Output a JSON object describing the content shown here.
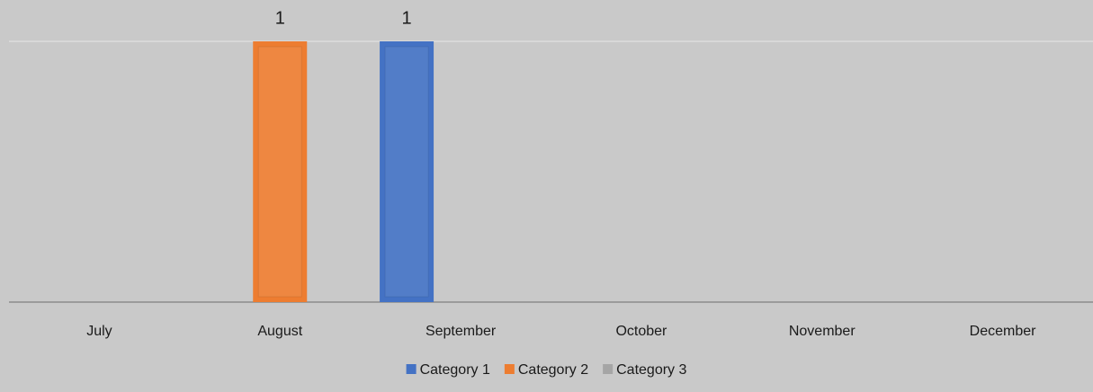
{
  "chart_data": {
    "type": "bar",
    "categories": [
      "July",
      "August",
      "September",
      "October",
      "November",
      "December"
    ],
    "series": [
      {
        "name": "Category 1",
        "color": "#4472c4",
        "values": [
          null,
          null,
          1,
          null,
          null,
          null
        ]
      },
      {
        "name": "Category 2",
        "color": "#ed7d31",
        "values": [
          null,
          1,
          null,
          null,
          null,
          null
        ]
      },
      {
        "name": "Category 3",
        "color": "#a5a5a5",
        "values": [
          null,
          null,
          null,
          null,
          null,
          null
        ]
      }
    ],
    "ylim": [
      0,
      1
    ],
    "yticks": [
      0,
      1
    ],
    "grid": true,
    "legend": "bottom"
  }
}
